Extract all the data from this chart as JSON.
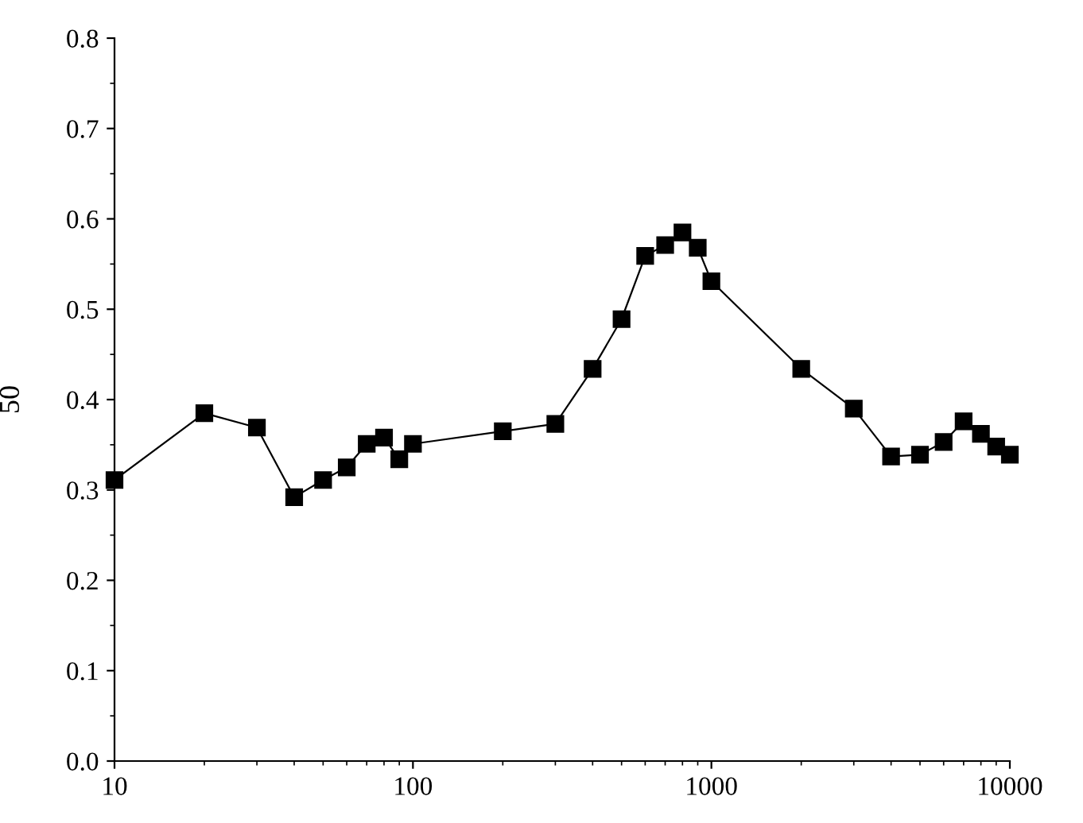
{
  "chart_data": {
    "type": "line",
    "ylabel": "50",
    "log": "x",
    "marker": "square",
    "line_style": "solid",
    "grid": false,
    "xlim": [
      10,
      10000
    ],
    "xticks": [
      10,
      100,
      1000,
      10000
    ],
    "ylim": [
      0,
      0.8
    ],
    "yticks": [
      {
        "value": 0,
        "label": "0.0"
      },
      0.1,
      0.2,
      0.3,
      0.4,
      0.5,
      0.6,
      0.7,
      0.8
    ],
    "series": [
      {
        "color": "#000000",
        "x": [
          10,
          20,
          30,
          40,
          50,
          60,
          70,
          80,
          90,
          100,
          200,
          300,
          400,
          500,
          600,
          700,
          800,
          900,
          1000,
          2000,
          3000,
          4000,
          5000,
          6000,
          7000,
          8000,
          9000,
          10000
        ],
        "values": [
          0.311,
          0.385,
          0.369,
          0.292,
          0.311,
          0.325,
          0.351,
          0.358,
          0.334,
          0.351,
          0.365,
          0.373,
          0.434,
          0.489,
          0.559,
          0.571,
          0.585,
          0.568,
          0.531,
          0.434,
          0.39,
          0.337,
          0.339,
          0.353,
          0.376,
          0.362,
          0.348,
          0.339
        ]
      }
    ]
  }
}
